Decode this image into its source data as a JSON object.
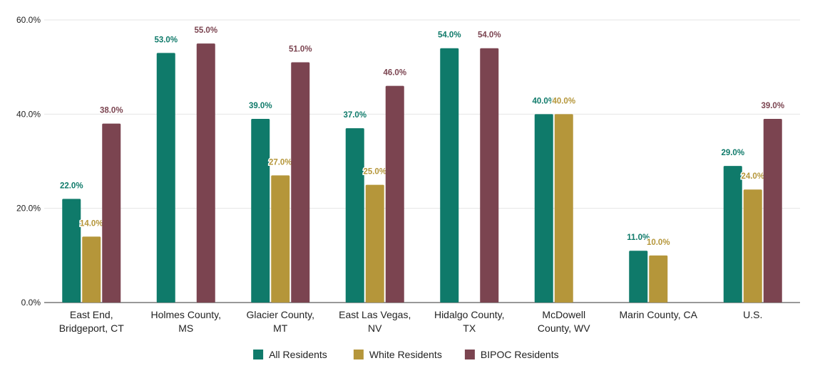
{
  "chart_data": {
    "type": "bar",
    "categories": [
      [
        "East End,",
        "Bridgeport, CT"
      ],
      [
        "Holmes County,",
        "MS"
      ],
      [
        "Glacier County,",
        "MT"
      ],
      [
        "East Las Vegas,",
        "NV"
      ],
      [
        "Hidalgo County,",
        "TX"
      ],
      [
        "McDowell",
        "County, WV"
      ],
      [
        "Marin County, CA"
      ],
      [
        "U.S."
      ]
    ],
    "series": [
      {
        "name": "All Residents",
        "color": "#0f7a6a",
        "values": [
          22,
          53,
          39,
          37,
          54,
          40,
          11,
          29
        ],
        "labels": [
          "22.0%",
          "53.0%",
          "39.0%",
          "37.0%",
          "54.0%",
          "40.0%",
          "11.0%",
          "29.0%"
        ]
      },
      {
        "name": "White Residents",
        "color": "#b5963a",
        "values": [
          14,
          null,
          27,
          25,
          null,
          40,
          10,
          24
        ],
        "labels": [
          "14.0%",
          null,
          "27.0%",
          "25.0%",
          null,
          "40.0%",
          "10.0%",
          "24.0%"
        ]
      },
      {
        "name": "BIPOC Residents",
        "color": "#7b4450",
        "values": [
          38,
          55,
          51,
          46,
          54,
          null,
          null,
          39
        ],
        "labels": [
          "38.0%",
          "55.0%",
          "51.0%",
          "46.0%",
          "54.0%",
          null,
          null,
          "39.0%"
        ]
      }
    ],
    "ylim": [
      0,
      60
    ],
    "yticks": [
      0,
      20,
      40,
      60
    ],
    "ytick_labels": [
      "0.0%",
      "20.0%",
      "40.0%",
      "60.0%"
    ],
    "grid": true,
    "legend_position": "bottom-center",
    "title": "",
    "xlabel": "",
    "ylabel": ""
  }
}
